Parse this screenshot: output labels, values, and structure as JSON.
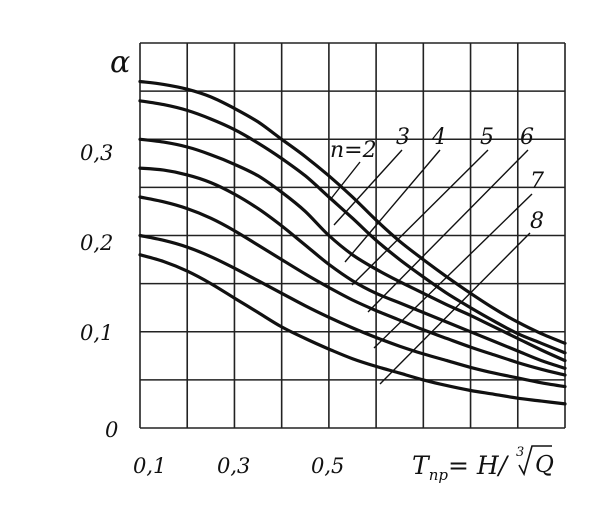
{
  "chart_data": {
    "type": "line",
    "ylabel": "α",
    "xlabel": {
      "prefix": "T",
      "subscript": "пр",
      "middle": "= H/",
      "root_index": "3",
      "radicand": "Q"
    },
    "x_ticks": [
      "0,1",
      "0,3",
      "0,5"
    ],
    "y_ticks": [
      "0",
      "0,1",
      "0,2",
      "0,3"
    ],
    "xlim": [
      0.1,
      1.0
    ],
    "ylim": [
      0.0,
      0.4
    ],
    "grid": true,
    "series": [
      {
        "name": "n=2",
        "points": [
          [
            0.1,
            0.36
          ],
          [
            0.15,
            0.357
          ],
          [
            0.2,
            0.352
          ],
          [
            0.25,
            0.344
          ],
          [
            0.3,
            0.332
          ],
          [
            0.35,
            0.318
          ],
          [
            0.4,
            0.3
          ],
          [
            0.45,
            0.282
          ],
          [
            0.5,
            0.262
          ],
          [
            0.55,
            0.24
          ],
          [
            0.6,
            0.216
          ],
          [
            0.65,
            0.194
          ],
          [
            0.7,
            0.175
          ],
          [
            0.75,
            0.157
          ],
          [
            0.8,
            0.14
          ],
          [
            0.85,
            0.124
          ],
          [
            0.9,
            0.11
          ],
          [
            0.95,
            0.098
          ],
          [
            1.0,
            0.088
          ]
        ]
      },
      {
        "name": "3",
        "points": [
          [
            0.1,
            0.34
          ],
          [
            0.15,
            0.336
          ],
          [
            0.2,
            0.33
          ],
          [
            0.25,
            0.321
          ],
          [
            0.3,
            0.31
          ],
          [
            0.35,
            0.296
          ],
          [
            0.4,
            0.28
          ],
          [
            0.45,
            0.262
          ],
          [
            0.5,
            0.24
          ],
          [
            0.55,
            0.218
          ],
          [
            0.6,
            0.195
          ],
          [
            0.65,
            0.175
          ],
          [
            0.7,
            0.157
          ],
          [
            0.75,
            0.14
          ],
          [
            0.8,
            0.125
          ],
          [
            0.85,
            0.111
          ],
          [
            0.9,
            0.098
          ],
          [
            0.95,
            0.088
          ],
          [
            1.0,
            0.078
          ]
        ]
      },
      {
        "name": "4",
        "points": [
          [
            0.1,
            0.3
          ],
          [
            0.15,
            0.297
          ],
          [
            0.2,
            0.292
          ],
          [
            0.25,
            0.284
          ],
          [
            0.3,
            0.274
          ],
          [
            0.35,
            0.262
          ],
          [
            0.4,
            0.245
          ],
          [
            0.45,
            0.225
          ],
          [
            0.5,
            0.2
          ],
          [
            0.55,
            0.18
          ],
          [
            0.6,
            0.165
          ],
          [
            0.65,
            0.152
          ],
          [
            0.7,
            0.14
          ],
          [
            0.75,
            0.128
          ],
          [
            0.8,
            0.117
          ],
          [
            0.85,
            0.105
          ],
          [
            0.9,
            0.093
          ],
          [
            0.95,
            0.081
          ],
          [
            1.0,
            0.07
          ]
        ]
      },
      {
        "name": "5",
        "points": [
          [
            0.1,
            0.27
          ],
          [
            0.15,
            0.268
          ],
          [
            0.2,
            0.263
          ],
          [
            0.25,
            0.255
          ],
          [
            0.3,
            0.243
          ],
          [
            0.35,
            0.228
          ],
          [
            0.4,
            0.21
          ],
          [
            0.45,
            0.19
          ],
          [
            0.5,
            0.17
          ],
          [
            0.55,
            0.153
          ],
          [
            0.6,
            0.14
          ],
          [
            0.65,
            0.13
          ],
          [
            0.7,
            0.12
          ],
          [
            0.75,
            0.11
          ],
          [
            0.8,
            0.1
          ],
          [
            0.85,
            0.09
          ],
          [
            0.9,
            0.08
          ],
          [
            0.95,
            0.07
          ],
          [
            1.0,
            0.062
          ]
        ]
      },
      {
        "name": "6",
        "points": [
          [
            0.1,
            0.24
          ],
          [
            0.15,
            0.235
          ],
          [
            0.2,
            0.228
          ],
          [
            0.25,
            0.218
          ],
          [
            0.3,
            0.205
          ],
          [
            0.35,
            0.19
          ],
          [
            0.4,
            0.175
          ],
          [
            0.45,
            0.16
          ],
          [
            0.5,
            0.146
          ],
          [
            0.55,
            0.133
          ],
          [
            0.6,
            0.122
          ],
          [
            0.65,
            0.112
          ],
          [
            0.7,
            0.102
          ],
          [
            0.75,
            0.093
          ],
          [
            0.8,
            0.084
          ],
          [
            0.85,
            0.076
          ],
          [
            0.9,
            0.068
          ],
          [
            0.95,
            0.061
          ],
          [
            1.0,
            0.055
          ]
        ]
      },
      {
        "name": "7",
        "points": [
          [
            0.1,
            0.2
          ],
          [
            0.15,
            0.195
          ],
          [
            0.2,
            0.188
          ],
          [
            0.25,
            0.178
          ],
          [
            0.3,
            0.166
          ],
          [
            0.35,
            0.153
          ],
          [
            0.4,
            0.14
          ],
          [
            0.45,
            0.127
          ],
          [
            0.5,
            0.115
          ],
          [
            0.55,
            0.104
          ],
          [
            0.6,
            0.094
          ],
          [
            0.65,
            0.085
          ],
          [
            0.7,
            0.077
          ],
          [
            0.75,
            0.07
          ],
          [
            0.8,
            0.063
          ],
          [
            0.85,
            0.057
          ],
          [
            0.9,
            0.052
          ],
          [
            0.95,
            0.047
          ],
          [
            1.0,
            0.043
          ]
        ]
      },
      {
        "name": "8",
        "points": [
          [
            0.1,
            0.18
          ],
          [
            0.15,
            0.173
          ],
          [
            0.2,
            0.163
          ],
          [
            0.25,
            0.15
          ],
          [
            0.3,
            0.135
          ],
          [
            0.35,
            0.12
          ],
          [
            0.4,
            0.105
          ],
          [
            0.45,
            0.093
          ],
          [
            0.5,
            0.082
          ],
          [
            0.55,
            0.072
          ],
          [
            0.6,
            0.064
          ],
          [
            0.65,
            0.057
          ],
          [
            0.7,
            0.05
          ],
          [
            0.75,
            0.044
          ],
          [
            0.8,
            0.039
          ],
          [
            0.85,
            0.035
          ],
          [
            0.9,
            0.031
          ],
          [
            0.95,
            0.028
          ],
          [
            1.0,
            0.025
          ]
        ]
      }
    ]
  }
}
